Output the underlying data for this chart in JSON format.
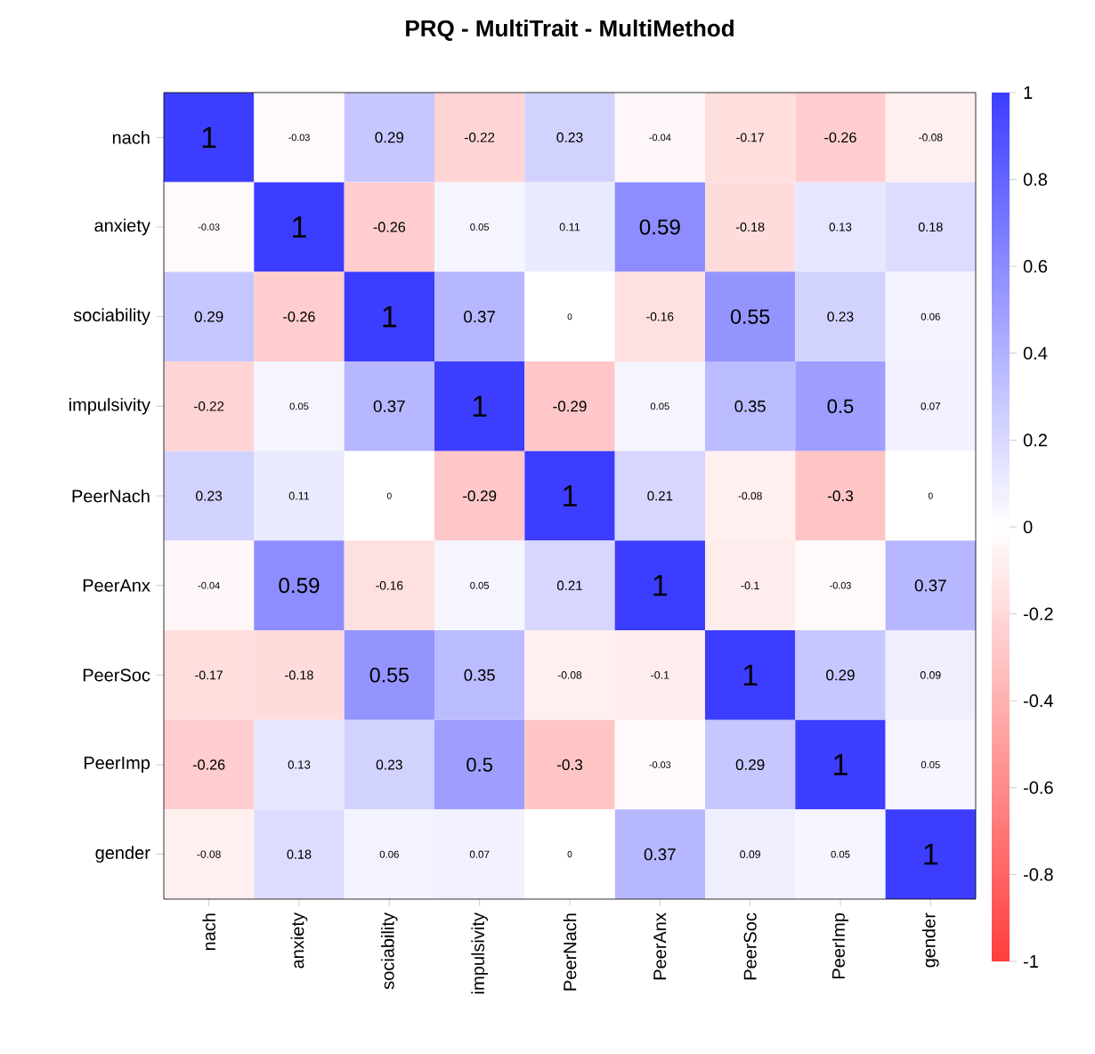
{
  "chart_data": {
    "type": "heatmap",
    "title": "PRQ - MultiTrait - MultiMethod",
    "categories": [
      "nach",
      "anxiety",
      "sociability",
      "impulsivity",
      "PeerNach",
      "PeerAnx",
      "PeerSoc",
      "PeerImp",
      "gender"
    ],
    "y_categories": [
      "nach",
      "anxiety",
      "sociability",
      "impulsivity",
      "PeerNach",
      "PeerAnx",
      "PeerSoc",
      "PeerImp",
      "gender"
    ],
    "cells": [
      [
        1,
        -0.03,
        0.29,
        -0.22,
        0.23,
        -0.04,
        -0.17,
        -0.26,
        -0.08
      ],
      [
        -0.03,
        1,
        -0.26,
        0.05,
        0.11,
        0.59,
        -0.18,
        0.13,
        0.18
      ],
      [
        0.29,
        -0.26,
        1,
        0.37,
        0,
        -0.16,
        0.55,
        0.23,
        0.06
      ],
      [
        -0.22,
        0.05,
        0.37,
        1,
        -0.29,
        0.05,
        0.35,
        0.5,
        0.07
      ],
      [
        0.23,
        0.11,
        0,
        -0.29,
        1,
        0.21,
        -0.08,
        -0.3,
        0
      ],
      [
        -0.04,
        0.59,
        -0.16,
        0.05,
        0.21,
        1,
        -0.1,
        -0.03,
        0.37
      ],
      [
        -0.17,
        -0.18,
        0.55,
        0.35,
        -0.08,
        -0.1,
        1,
        0.29,
        0.09
      ],
      [
        -0.26,
        0.13,
        0.23,
        0.5,
        -0.3,
        -0.03,
        0.29,
        1,
        0.05
      ],
      [
        -0.08,
        0.18,
        0.06,
        0.07,
        0,
        0.37,
        0.09,
        0.05,
        1
      ]
    ],
    "data_labels": true,
    "clim": [
      -1,
      1
    ],
    "cticks": [
      -1,
      -0.8,
      -0.6,
      -0.4,
      -0.2,
      0,
      0.2,
      0.4,
      0.6,
      0.8,
      1
    ]
  }
}
